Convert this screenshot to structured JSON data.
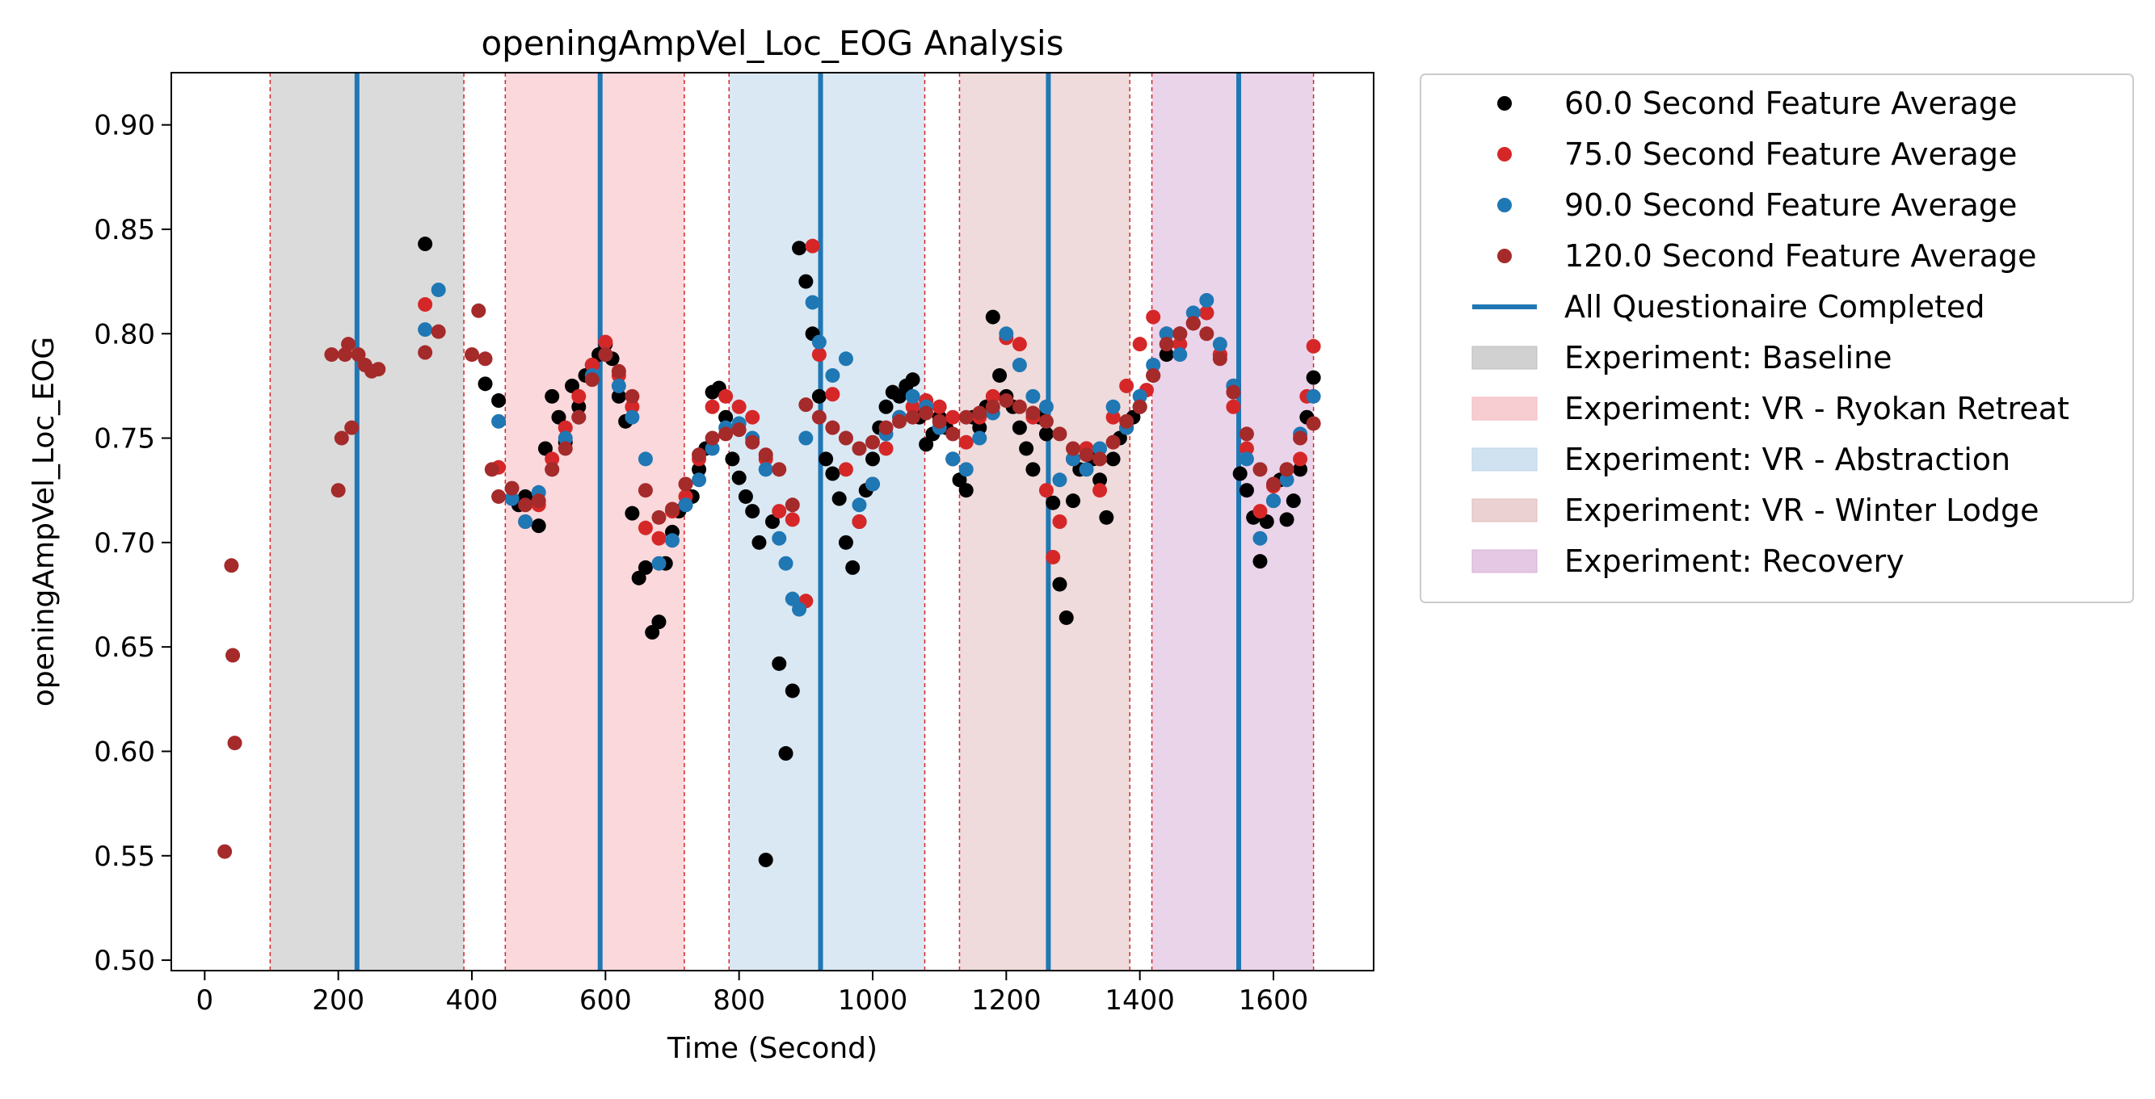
{
  "chart_data": {
    "type": "scatter",
    "title": "openingAmpVel_Loc_EOG Analysis",
    "xlabel": "Time (Second)",
    "ylabel": "openingAmpVel_Loc_EOG",
    "xlim": [
      -50,
      1750
    ],
    "ylim": [
      0.495,
      0.925
    ],
    "xticks": [
      0,
      200,
      400,
      600,
      800,
      1000,
      1200,
      1400,
      1600
    ],
    "yticks": [
      0.5,
      0.55,
      0.6,
      0.65,
      0.7,
      0.75,
      0.8,
      0.85,
      0.9
    ],
    "grid": false,
    "legend_position": "outside-right-top",
    "phases": [
      {
        "name": "Experiment: Baseline",
        "start": 98,
        "end": 388,
        "color": "#bdbdbd"
      },
      {
        "name": "Experiment: VR - Ryokan Retreat",
        "start": 450,
        "end": 718,
        "color": "#f5b8bd"
      },
      {
        "name": "Experiment: VR - Abstraction",
        "start": 785,
        "end": 1078,
        "color": "#bcd6ea"
      },
      {
        "name": "Experiment: VR - Winter Lodge",
        "start": 1130,
        "end": 1385,
        "color": "#e2bdbd"
      },
      {
        "name": "Experiment: Recovery",
        "start": 1418,
        "end": 1660,
        "color": "#d8b0d8"
      }
    ],
    "questionnaire_lines": {
      "name": "All Questionaire Completed",
      "color": "#1f77b4",
      "x": [
        228,
        592,
        922,
        1263,
        1548
      ]
    },
    "series": [
      {
        "name": "60.0 Second Feature Average",
        "color": "#000000",
        "x": [
          330,
          420,
          440,
          470,
          480,
          500,
          510,
          520,
          530,
          540,
          550,
          560,
          570,
          580,
          590,
          600,
          610,
          620,
          630,
          640,
          650,
          660,
          670,
          680,
          690,
          700,
          710,
          720,
          730,
          740,
          750,
          760,
          770,
          780,
          790,
          800,
          810,
          820,
          830,
          840,
          850,
          860,
          870,
          880,
          890,
          900,
          910,
          920,
          930,
          940,
          950,
          960,
          970,
          980,
          990,
          1000,
          1010,
          1020,
          1030,
          1040,
          1050,
          1060,
          1070,
          1080,
          1090,
          1100,
          1110,
          1120,
          1130,
          1140,
          1150,
          1160,
          1170,
          1180,
          1190,
          1200,
          1210,
          1220,
          1230,
          1240,
          1250,
          1260,
          1270,
          1280,
          1290,
          1300,
          1310,
          1320,
          1330,
          1340,
          1350,
          1360,
          1370,
          1380,
          1390,
          1400,
          1420,
          1440,
          1460,
          1480,
          1500,
          1520,
          1540,
          1550,
          1560,
          1570,
          1580,
          1590,
          1600,
          1610,
          1620,
          1630,
          1640,
          1650,
          1660
        ],
        "y": [
          0.843,
          0.776,
          0.768,
          0.718,
          0.722,
          0.708,
          0.745,
          0.77,
          0.76,
          0.748,
          0.775,
          0.765,
          0.78,
          0.785,
          0.79,
          0.795,
          0.788,
          0.77,
          0.758,
          0.714,
          0.683,
          0.688,
          0.657,
          0.662,
          0.69,
          0.705,
          0.715,
          0.718,
          0.722,
          0.735,
          0.745,
          0.772,
          0.774,
          0.76,
          0.74,
          0.731,
          0.722,
          0.715,
          0.7,
          0.548,
          0.71,
          0.642,
          0.599,
          0.629,
          0.841,
          0.825,
          0.8,
          0.77,
          0.74,
          0.733,
          0.721,
          0.7,
          0.688,
          0.71,
          0.725,
          0.74,
          0.755,
          0.765,
          0.772,
          0.77,
          0.775,
          0.778,
          0.76,
          0.747,
          0.752,
          0.76,
          0.755,
          0.74,
          0.73,
          0.725,
          0.76,
          0.755,
          0.765,
          0.808,
          0.78,
          0.77,
          0.765,
          0.755,
          0.745,
          0.735,
          0.76,
          0.752,
          0.719,
          0.68,
          0.664,
          0.72,
          0.735,
          0.745,
          0.74,
          0.73,
          0.712,
          0.74,
          0.75,
          0.755,
          0.76,
          0.765,
          0.78,
          0.79,
          0.8,
          0.805,
          0.81,
          0.79,
          0.775,
          0.733,
          0.725,
          0.712,
          0.691,
          0.71,
          0.72,
          0.73,
          0.711,
          0.72,
          0.735,
          0.76,
          0.779
        ],
        "radius": 9
      },
      {
        "name": "75.0 Second Feature Average",
        "color": "#d62728",
        "x": [
          330,
          440,
          480,
          500,
          520,
          540,
          560,
          580,
          600,
          620,
          640,
          660,
          680,
          700,
          720,
          740,
          760,
          780,
          800,
          820,
          840,
          860,
          880,
          900,
          910,
          920,
          940,
          960,
          980,
          1000,
          1020,
          1040,
          1060,
          1080,
          1100,
          1120,
          1140,
          1160,
          1180,
          1200,
          1220,
          1240,
          1260,
          1270,
          1280,
          1300,
          1320,
          1340,
          1360,
          1380,
          1400,
          1410,
          1420,
          1440,
          1460,
          1480,
          1500,
          1520,
          1540,
          1560,
          1580,
          1600,
          1620,
          1640,
          1650,
          1660
        ],
        "y": [
          0.814,
          0.736,
          0.71,
          0.718,
          0.74,
          0.755,
          0.77,
          0.785,
          0.796,
          0.78,
          0.765,
          0.707,
          0.702,
          0.715,
          0.722,
          0.74,
          0.765,
          0.77,
          0.765,
          0.76,
          0.74,
          0.715,
          0.711,
          0.672,
          0.842,
          0.79,
          0.771,
          0.735,
          0.71,
          0.728,
          0.745,
          0.76,
          0.765,
          0.768,
          0.765,
          0.76,
          0.748,
          0.76,
          0.77,
          0.798,
          0.795,
          0.76,
          0.725,
          0.693,
          0.71,
          0.74,
          0.745,
          0.725,
          0.76,
          0.775,
          0.795,
          0.773,
          0.808,
          0.8,
          0.795,
          0.805,
          0.81,
          0.79,
          0.765,
          0.745,
          0.715,
          0.727,
          0.735,
          0.74,
          0.77,
          0.794
        ],
        "radius": 9
      },
      {
        "name": "90.0 Second Feature Average",
        "color": "#1f77b4",
        "x": [
          330,
          350,
          440,
          460,
          480,
          500,
          520,
          540,
          560,
          580,
          600,
          620,
          640,
          660,
          680,
          700,
          720,
          740,
          760,
          780,
          800,
          820,
          840,
          860,
          870,
          880,
          890,
          900,
          910,
          920,
          940,
          960,
          980,
          1000,
          1020,
          1040,
          1060,
          1080,
          1100,
          1120,
          1140,
          1160,
          1180,
          1200,
          1220,
          1240,
          1260,
          1280,
          1300,
          1320,
          1340,
          1360,
          1380,
          1400,
          1420,
          1440,
          1460,
          1480,
          1500,
          1520,
          1540,
          1560,
          1580,
          1600,
          1620,
          1640,
          1660
        ],
        "y": [
          0.802,
          0.821,
          0.758,
          0.721,
          0.71,
          0.724,
          0.735,
          0.75,
          0.76,
          0.78,
          0.79,
          0.775,
          0.76,
          0.74,
          0.69,
          0.701,
          0.718,
          0.73,
          0.745,
          0.755,
          0.757,
          0.75,
          0.735,
          0.702,
          0.69,
          0.673,
          0.668,
          0.75,
          0.815,
          0.796,
          0.78,
          0.788,
          0.718,
          0.728,
          0.752,
          0.76,
          0.77,
          0.765,
          0.755,
          0.74,
          0.735,
          0.75,
          0.762,
          0.8,
          0.785,
          0.77,
          0.765,
          0.73,
          0.74,
          0.735,
          0.745,
          0.765,
          0.755,
          0.77,
          0.785,
          0.8,
          0.79,
          0.81,
          0.816,
          0.795,
          0.775,
          0.74,
          0.702,
          0.72,
          0.73,
          0.752,
          0.77
        ],
        "radius": 9
      },
      {
        "name": "120.0 Second Feature Average",
        "color": "#a52a2a",
        "x": [
          30,
          40,
          42,
          45,
          190,
          200,
          205,
          210,
          215,
          220,
          230,
          240,
          250,
          260,
          330,
          350,
          400,
          410,
          420,
          430,
          440,
          460,
          480,
          500,
          520,
          540,
          560,
          580,
          600,
          620,
          640,
          660,
          680,
          700,
          720,
          740,
          760,
          780,
          800,
          820,
          840,
          860,
          880,
          900,
          920,
          940,
          960,
          980,
          1000,
          1020,
          1040,
          1060,
          1080,
          1100,
          1120,
          1140,
          1160,
          1180,
          1200,
          1220,
          1240,
          1260,
          1280,
          1300,
          1320,
          1340,
          1360,
          1380,
          1400,
          1420,
          1440,
          1460,
          1480,
          1500,
          1520,
          1540,
          1560,
          1580,
          1600,
          1620,
          1640,
          1660
        ],
        "y": [
          0.552,
          0.689,
          0.646,
          0.604,
          0.79,
          0.725,
          0.75,
          0.79,
          0.795,
          0.755,
          0.79,
          0.785,
          0.782,
          0.783,
          0.791,
          0.801,
          0.79,
          0.811,
          0.788,
          0.735,
          0.722,
          0.726,
          0.718,
          0.72,
          0.735,
          0.745,
          0.76,
          0.778,
          0.79,
          0.782,
          0.77,
          0.725,
          0.712,
          0.716,
          0.728,
          0.742,
          0.75,
          0.752,
          0.754,
          0.748,
          0.742,
          0.735,
          0.718,
          0.766,
          0.76,
          0.755,
          0.75,
          0.745,
          0.748,
          0.755,
          0.758,
          0.76,
          0.762,
          0.758,
          0.752,
          0.76,
          0.762,
          0.765,
          0.768,
          0.765,
          0.762,
          0.758,
          0.752,
          0.745,
          0.742,
          0.74,
          0.748,
          0.758,
          0.765,
          0.78,
          0.795,
          0.8,
          0.805,
          0.8,
          0.788,
          0.772,
          0.752,
          0.735,
          0.728,
          0.735,
          0.75,
          0.757
        ],
        "radius": 9
      }
    ]
  }
}
